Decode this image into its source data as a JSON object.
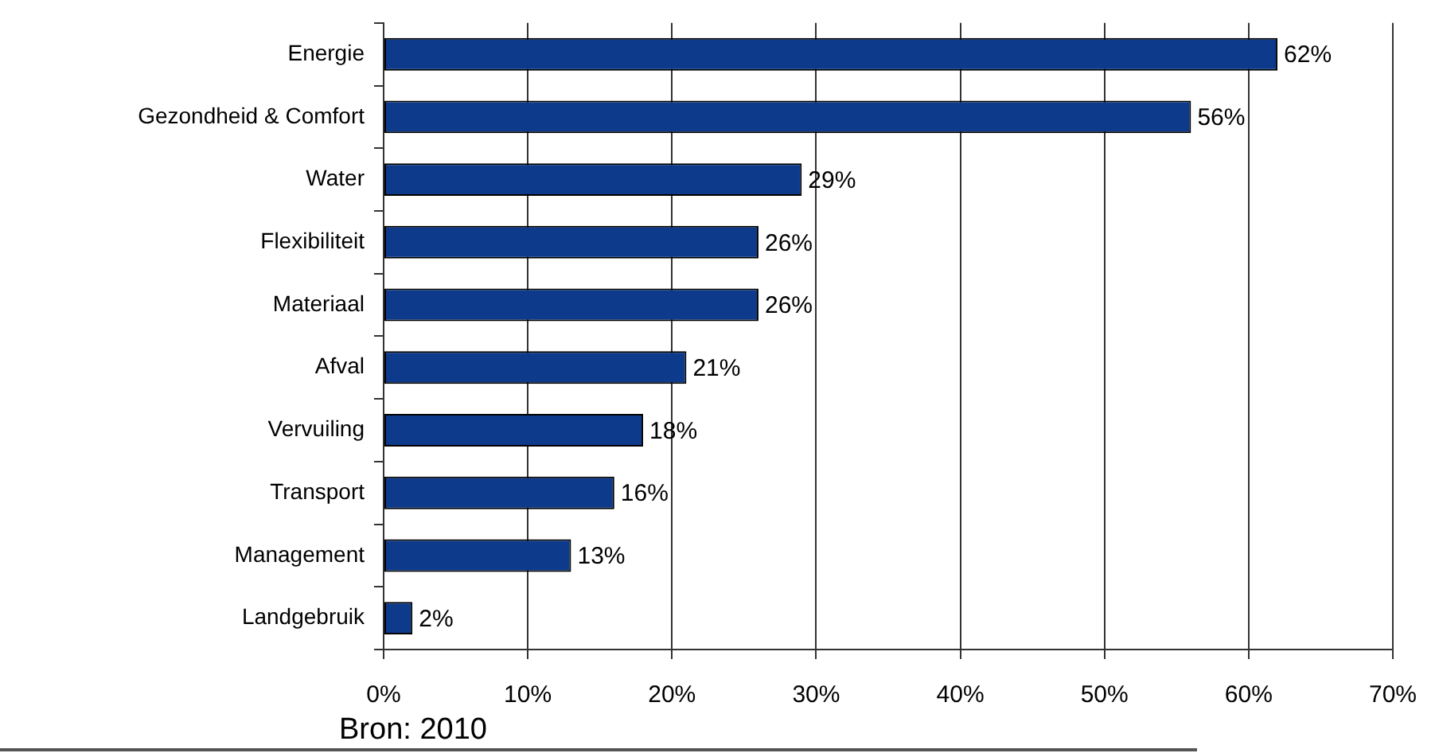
{
  "chart_data": {
    "type": "bar",
    "orientation": "horizontal",
    "categories": [
      "Energie",
      "Gezondheid & Comfort",
      "Water",
      "Flexibiliteit",
      "Materiaal",
      "Afval",
      "Vervuiling",
      "Transport",
      "Management",
      "Landgebruik"
    ],
    "values": [
      62,
      56,
      29,
      26,
      26,
      21,
      18,
      16,
      13,
      2
    ],
    "value_labels": [
      "62%",
      "56%",
      "29%",
      "26%",
      "26%",
      "21%",
      "18%",
      "16%",
      "13%",
      "2%"
    ],
    "color": "#0d3a8a",
    "xlim": [
      0,
      70
    ],
    "xticks": [
      {
        "value": 0,
        "label": "0%"
      },
      {
        "value": 10,
        "label": "10%"
      },
      {
        "value": 20,
        "label": "20%"
      },
      {
        "value": 30,
        "label": "30%"
      },
      {
        "value": 40,
        "label": "40%"
      },
      {
        "value": 50,
        "label": "50%"
      },
      {
        "value": 60,
        "label": "60%"
      },
      {
        "value": 70,
        "label": "70%"
      }
    ],
    "grid": "x",
    "annotations": [
      "Bron: 2010"
    ]
  }
}
